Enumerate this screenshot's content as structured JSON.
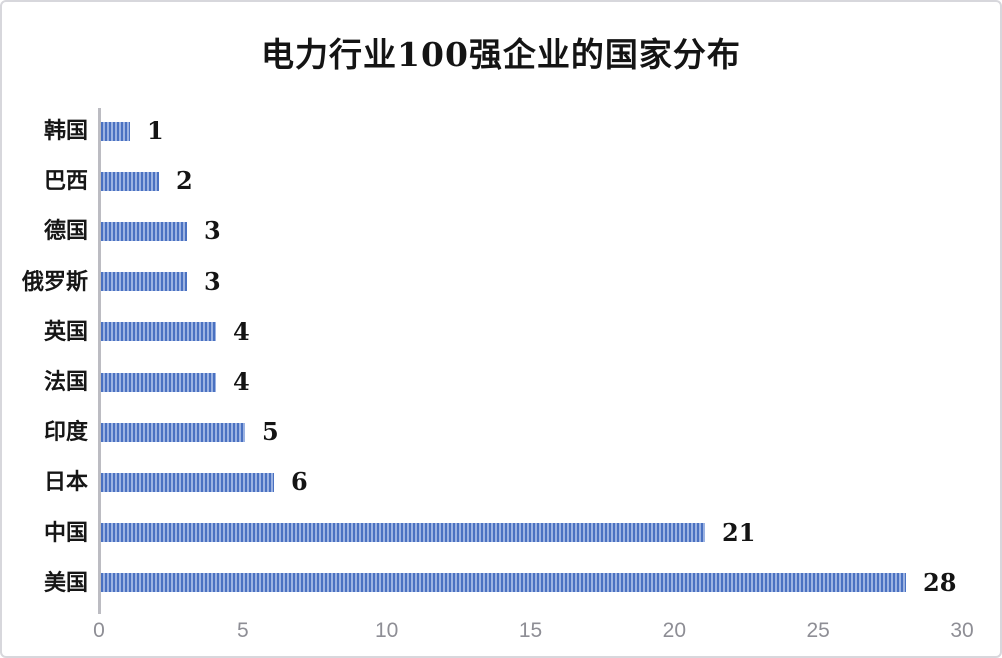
{
  "title": "电力行业100强企业的国家分布",
  "chart_data": {
    "type": "bar",
    "orientation": "horizontal",
    "title": "电力行业100强企业的国家分布",
    "categories": [
      "韩国",
      "巴西",
      "德国",
      "俄罗斯",
      "英国",
      "法国",
      "印度",
      "日本",
      "中国",
      "美国"
    ],
    "values": [
      1,
      2,
      3,
      3,
      4,
      4,
      5,
      6,
      21,
      28
    ],
    "xlabel": "",
    "ylabel": "",
    "xlim": [
      0,
      30
    ],
    "xticks": [
      0,
      5,
      10,
      15,
      20,
      25,
      30
    ],
    "grid": false,
    "legend": "none",
    "data_labels": "outside-end",
    "colors": {
      "bar_stripe_dark": "#4a71c1",
      "bar_stripe_light": "#9cb3e2",
      "axis_line": "#bcbcc2",
      "tick_label": "#8e8e95",
      "text": "#141414",
      "frame_border": "#d7d7dc",
      "background": "#ffffff"
    }
  }
}
